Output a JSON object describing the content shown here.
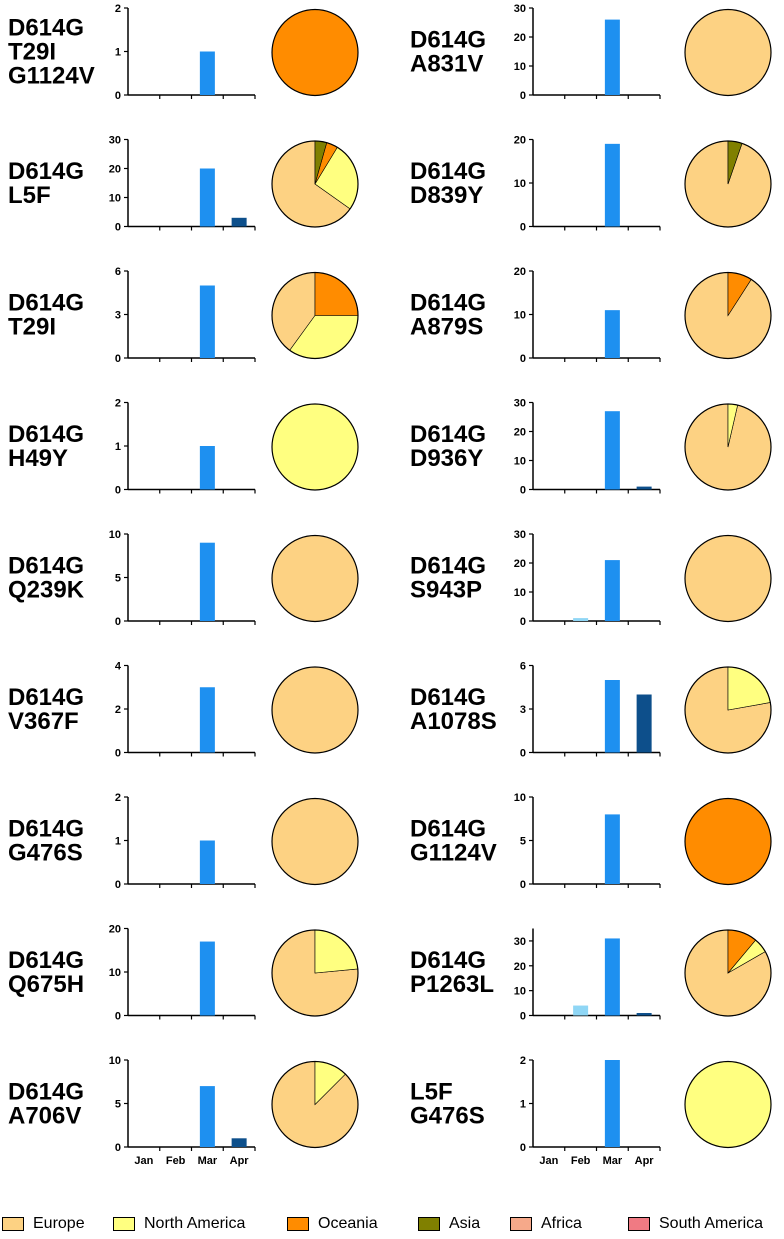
{
  "chart_data": {
    "type": "bar",
    "months": [
      "Jan",
      "Feb",
      "Mar",
      "Apr"
    ],
    "month_colors": [
      "#8fd6f5",
      "#8fd6f5",
      "#1e90f0",
      "#0d4f8b"
    ],
    "regions": [
      {
        "name": "Europe",
        "color": "#fdd283"
      },
      {
        "name": "North America",
        "color": "#ffff80"
      },
      {
        "name": "Oceania",
        "color": "#ff8c00"
      },
      {
        "name": "Asia",
        "color": "#808000"
      },
      {
        "name": "Africa",
        "color": "#f6a98a"
      },
      {
        "name": "South America",
        "color": "#f07a83"
      }
    ],
    "panels": [
      {
        "col": 0,
        "row": 0,
        "label": [
          "D614G",
          "T29I",
          "G1124V"
        ],
        "highlight": true,
        "ymax": 2,
        "ticks": [
          0,
          1,
          2
        ],
        "values": [
          0,
          0,
          1,
          0
        ],
        "pie": [
          0,
          0,
          1,
          0,
          0,
          0
        ]
      },
      {
        "col": 0,
        "row": 1,
        "label": [
          "D614G",
          "L5F"
        ],
        "ymax": 30,
        "ticks": [
          0,
          10,
          20,
          30
        ],
        "values": [
          0,
          0,
          20,
          3
        ],
        "pie": [
          0.652,
          0.261,
          0.043,
          0.044,
          0,
          0
        ]
      },
      {
        "col": 0,
        "row": 2,
        "label": [
          "D614G",
          "T29I"
        ],
        "ymax": 6,
        "ticks": [
          0,
          3,
          6
        ],
        "values": [
          0,
          0,
          5,
          0
        ],
        "pie": [
          0.4,
          0.35,
          0.25,
          0,
          0,
          0
        ]
      },
      {
        "col": 0,
        "row": 3,
        "label": [
          "D614G",
          "H49Y"
        ],
        "ymax": 2,
        "ticks": [
          0,
          1,
          2
        ],
        "values": [
          0,
          0,
          1,
          0
        ],
        "pie": [
          0,
          1,
          0,
          0,
          0,
          0
        ]
      },
      {
        "col": 0,
        "row": 4,
        "label": [
          "D614G",
          "Q239K"
        ],
        "ymax": 10,
        "ticks": [
          0,
          5,
          10
        ],
        "values": [
          0,
          0,
          9,
          0
        ],
        "pie": [
          1,
          0,
          0,
          0,
          0,
          0
        ]
      },
      {
        "col": 0,
        "row": 5,
        "label": [
          "D614G",
          "V367F"
        ],
        "ymax": 4,
        "ticks": [
          0,
          2,
          4
        ],
        "values": [
          0,
          0,
          3,
          0
        ],
        "pie": [
          1,
          0,
          0,
          0,
          0,
          0
        ]
      },
      {
        "col": 0,
        "row": 6,
        "label": [
          "D614G",
          "G476S"
        ],
        "ymax": 2,
        "ticks": [
          0,
          1,
          2
        ],
        "values": [
          0,
          0,
          1,
          0
        ],
        "pie": [
          1,
          0,
          0,
          0,
          0,
          0
        ]
      },
      {
        "col": 0,
        "row": 7,
        "label": [
          "D614G",
          "Q675H"
        ],
        "ymax": 20,
        "ticks": [
          0,
          10,
          20
        ],
        "values": [
          0,
          0,
          17,
          0
        ],
        "pie": [
          0.765,
          0.235,
          0,
          0,
          0,
          0
        ]
      },
      {
        "col": 0,
        "row": 8,
        "label": [
          "D614G",
          "A706V"
        ],
        "ymax": 10,
        "ticks": [
          0,
          5,
          10
        ],
        "values": [
          0,
          0,
          7,
          1
        ],
        "pie": [
          0.875,
          0.125,
          0,
          0,
          0,
          0
        ]
      },
      {
        "col": 1,
        "row": 0,
        "label": [
          "D614G",
          "A831V"
        ],
        "ymax": 30,
        "ticks": [
          0,
          10,
          20,
          30
        ],
        "values": [
          0,
          0,
          26,
          0
        ],
        "pie": [
          1,
          0,
          0,
          0,
          0,
          0
        ]
      },
      {
        "col": 1,
        "row": 1,
        "label": [
          "D614G",
          "D839Y"
        ],
        "ymax": 20,
        "ticks": [
          0,
          10,
          20
        ],
        "values": [
          0,
          0,
          19,
          0
        ],
        "pie": [
          0.947,
          0,
          0,
          0.053,
          0,
          0
        ]
      },
      {
        "col": 1,
        "row": 2,
        "label": [
          "D614G",
          "A879S"
        ],
        "ymax": 20,
        "ticks": [
          0,
          10,
          20
        ],
        "values": [
          0,
          0,
          11,
          0
        ],
        "pie": [
          0.909,
          0,
          0.091,
          0,
          0,
          0
        ]
      },
      {
        "col": 1,
        "row": 3,
        "label": [
          "D614G",
          "D936Y"
        ],
        "ymax": 30,
        "ticks": [
          0,
          10,
          20,
          30
        ],
        "values": [
          0,
          0,
          27,
          1
        ],
        "pie": [
          0.964,
          0.036,
          0,
          0,
          0,
          0
        ]
      },
      {
        "col": 1,
        "row": 4,
        "label": [
          "D614G",
          "S943P"
        ],
        "ymax": 30,
        "ticks": [
          0,
          10,
          20,
          30
        ],
        "values": [
          0,
          1,
          21,
          0
        ],
        "pie": [
          1,
          0,
          0,
          0,
          0,
          0
        ]
      },
      {
        "col": 1,
        "row": 5,
        "label": [
          "D614G",
          "A1078S"
        ],
        "ymax": 6,
        "ticks": [
          0,
          3,
          6
        ],
        "values": [
          0,
          0,
          5,
          4
        ],
        "pie": [
          0.778,
          0.222,
          0,
          0,
          0,
          0
        ]
      },
      {
        "col": 1,
        "row": 6,
        "label": [
          "D614G",
          "G1124V"
        ],
        "ymax": 10,
        "ticks": [
          0,
          5,
          10
        ],
        "values": [
          0,
          0,
          8,
          0
        ],
        "pie": [
          0,
          0,
          1,
          0,
          0,
          0
        ]
      },
      {
        "col": 1,
        "row": 7,
        "label": [
          "D614G",
          "P1263L"
        ],
        "ymax": 35,
        "ticks": [
          0,
          10,
          20,
          30
        ],
        "values": [
          0,
          4,
          31,
          1
        ],
        "pie": [
          0.833,
          0.056,
          0.111,
          0,
          0,
          0
        ]
      },
      {
        "col": 1,
        "row": 8,
        "label": [
          "L5F",
          "G476S"
        ],
        "ymax": 2,
        "ticks": [
          0,
          1,
          2
        ],
        "values": [
          0,
          0,
          2,
          0
        ],
        "pie": [
          0,
          1,
          0,
          0,
          0,
          0
        ]
      }
    ]
  }
}
